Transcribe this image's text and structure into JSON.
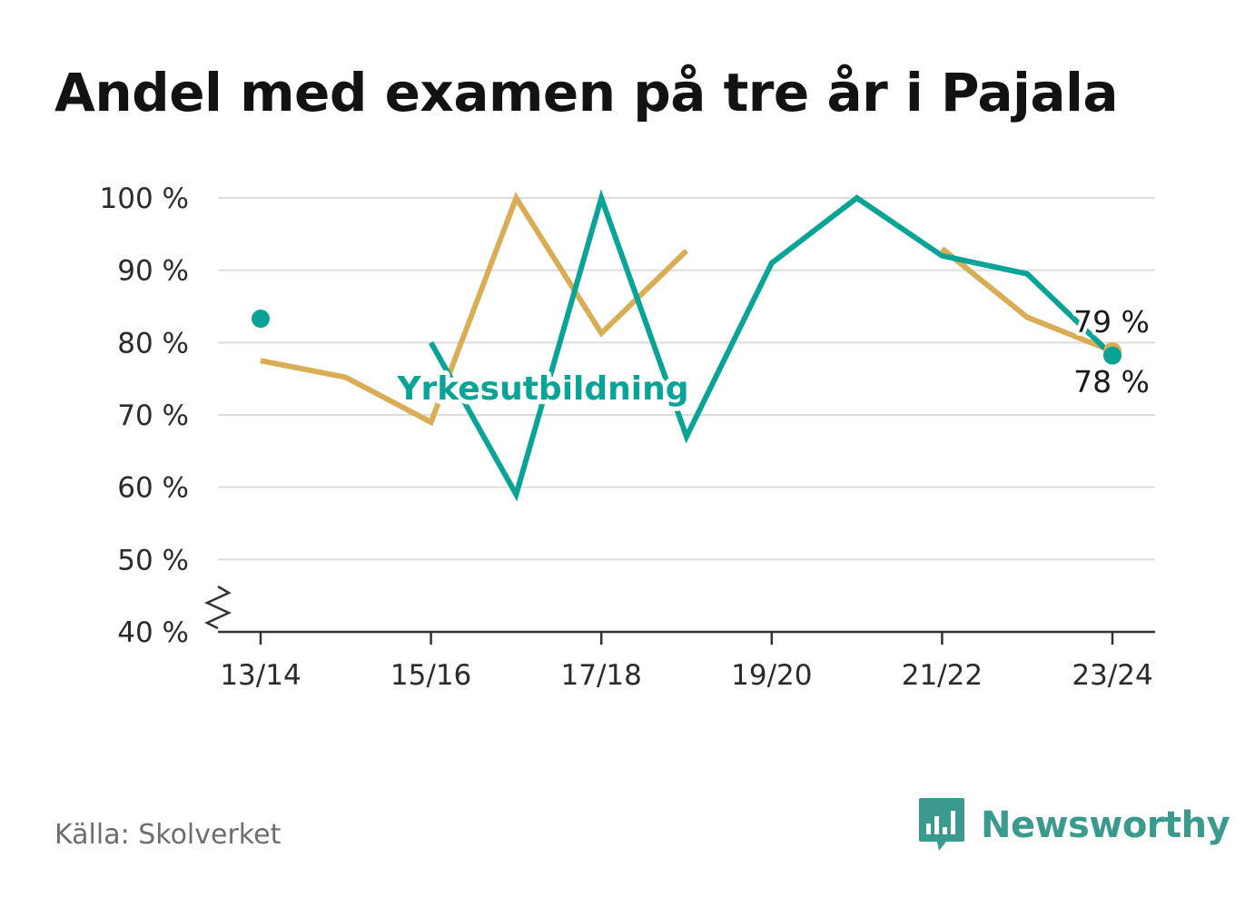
{
  "title": "Andel med examen på tre år i Pajala",
  "source": "Källa: Skolverket",
  "brand": {
    "name": "Newsworthy",
    "icon": "newsworthy-logo-icon",
    "color": "#3b9a8e"
  },
  "chart_data": {
    "type": "line",
    "categories": [
      "13/14",
      "14/15",
      "15/16",
      "16/17",
      "17/18",
      "18/19",
      "19/20",
      "20/21",
      "21/22",
      "22/23",
      "23/24"
    ],
    "x_tick_labels": [
      "13/14",
      "15/16",
      "17/18",
      "19/20",
      "21/22",
      "23/24"
    ],
    "y_tick_labels": [
      "40 %",
      "50 %",
      "60 %",
      "70 %",
      "80 %",
      "90 %",
      "100 %"
    ],
    "ylim": [
      40,
      100
    ],
    "y_axis_break": true,
    "grid": true,
    "series": [
      {
        "values": [
          77.5,
          75.2,
          69,
          100,
          81.3,
          92.7,
          null,
          null,
          93,
          83.5,
          78.8
        ],
        "color": "#d9ad55",
        "end_label": "79 %"
      },
      {
        "name": "Yrkesutbildning",
        "values": [
          83.3,
          null,
          80,
          59,
          100,
          67,
          91,
          100,
          92,
          89.5,
          78.2
        ],
        "color": "#0aa497",
        "end_label": "78 %"
      }
    ]
  }
}
